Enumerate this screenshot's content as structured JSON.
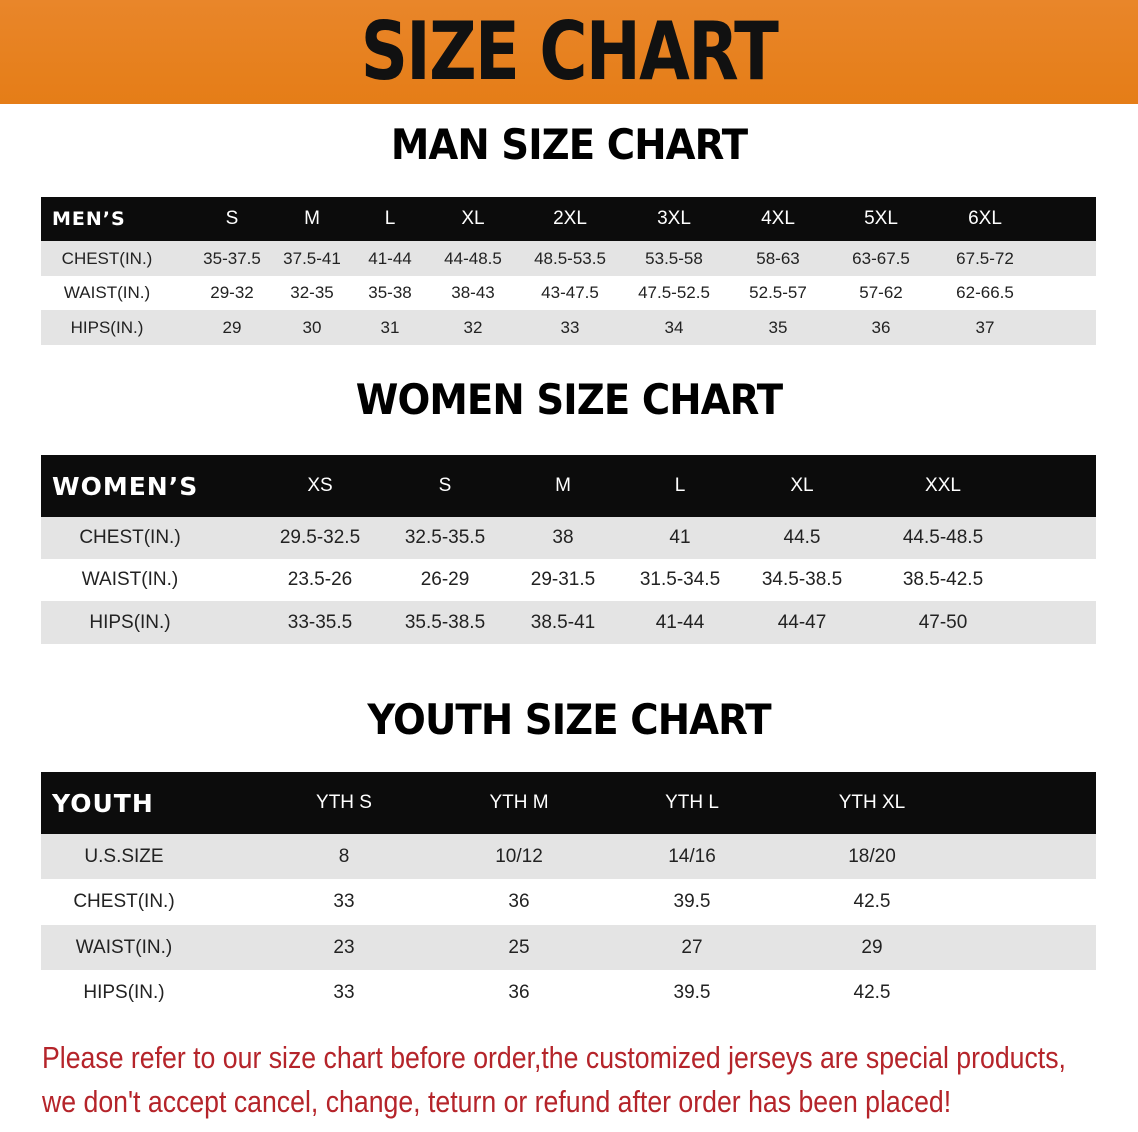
{
  "banner": {
    "title": "SIZE CHART",
    "color": "#e8821e"
  },
  "men": {
    "title": "MAN SIZE CHART",
    "header": [
      "MEN’S",
      "S",
      "M",
      "L",
      "XL",
      "2XL",
      "3XL",
      "4XL",
      "5XL",
      "6XL"
    ],
    "rows": [
      [
        "CHEST(IN.)",
        "35-37.5",
        "37.5-41",
        "41-44",
        "44-48.5",
        "48.5-53.5",
        "53.5-58",
        "58-63",
        "63-67.5",
        "67.5-72"
      ],
      [
        "WAIST(IN.)",
        "29-32",
        "32-35",
        "35-38",
        "38-43",
        "43-47.5",
        "47.5-52.5",
        "52.5-57",
        "57-62",
        "62-66.5"
      ],
      [
        "HIPS(IN.)",
        "29",
        "30",
        "31",
        "32",
        "33",
        "34",
        "35",
        "36",
        "37"
      ]
    ]
  },
  "women": {
    "title": "WOMEN SIZE CHART",
    "header": [
      "WOMEN’S",
      "XS",
      "S",
      "M",
      "L",
      "XL",
      "XXL"
    ],
    "rows": [
      [
        "CHEST(IN.)",
        "29.5-32.5",
        "32.5-35.5",
        "38",
        "41",
        "44.5",
        "44.5-48.5"
      ],
      [
        "WAIST(IN.)",
        "23.5-26",
        "26-29",
        "29-31.5",
        "31.5-34.5",
        "34.5-38.5",
        "38.5-42.5"
      ],
      [
        "HIPS(IN.)",
        "33-35.5",
        "35.5-38.5",
        "38.5-41",
        "41-44",
        "44-47",
        "47-50"
      ]
    ]
  },
  "youth": {
    "title": "YOUTH SIZE CHART",
    "header": [
      "YOUTH",
      "YTH S",
      "YTH M",
      "YTH L",
      "YTH XL"
    ],
    "rows": [
      [
        "U.S.SIZE",
        "8",
        "10/12",
        "14/16",
        "18/20"
      ],
      [
        "CHEST(IN.)",
        "33",
        "36",
        "39.5",
        "42.5"
      ],
      [
        "WAIST(IN.)",
        "23",
        "25",
        "27",
        "29"
      ],
      [
        "HIPS(IN.)",
        "33",
        "36",
        "39.5",
        "42.5"
      ]
    ]
  },
  "note": {
    "line1": "Please refer to our size chart before order,the customized jerseys are special products,",
    "line2": "we don't accept cancel, change, teturn or refund after order has been placed!",
    "color": "#b5242a"
  }
}
